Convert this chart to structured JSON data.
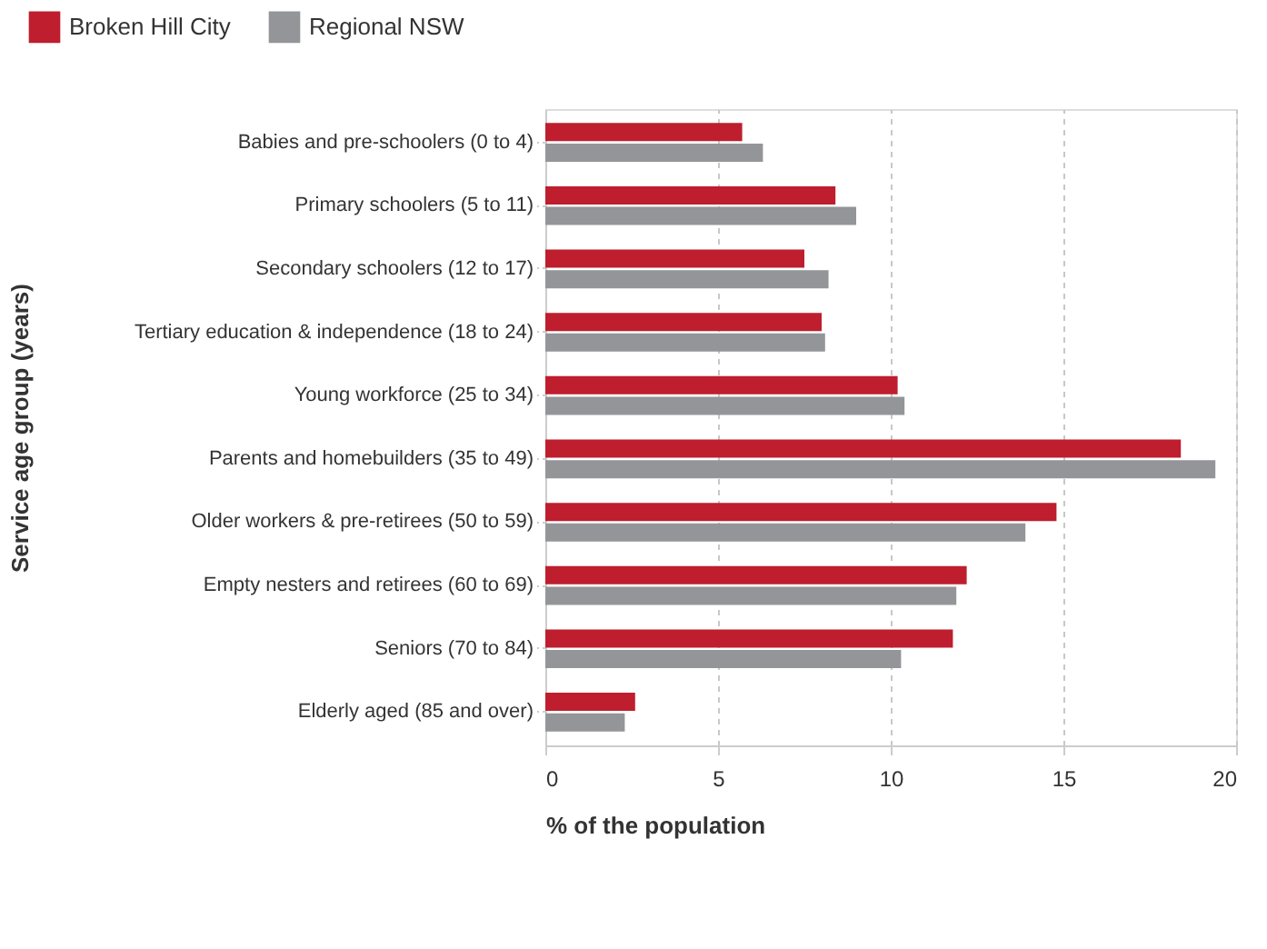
{
  "chart_data": {
    "type": "bar",
    "orientation": "horizontal",
    "xlabel": "% of the population",
    "ylabel": "Service age group (years)",
    "categories": [
      "Babies and pre-schoolers (0 to 4)",
      "Primary schoolers (5 to 11)",
      "Secondary schoolers (12 to 17)",
      "Tertiary education & independence (18 to 24)",
      "Young workforce (25 to 34)",
      "Parents and homebuilders (35 to 49)",
      "Older workers & pre-retirees (50 to 59)",
      "Empty nesters and retirees (60 to 69)",
      "Seniors (70 to 84)",
      "Elderly aged (85 and over)"
    ],
    "series": [
      {
        "name": "Broken Hill City",
        "color": "#be1e2d",
        "values": [
          5.7,
          8.4,
          7.5,
          8.0,
          10.2,
          18.4,
          14.8,
          12.2,
          11.8,
          2.6
        ]
      },
      {
        "name": "Regional NSW",
        "color": "#939598",
        "values": [
          6.3,
          9.0,
          8.2,
          8.1,
          10.4,
          19.4,
          13.9,
          11.9,
          10.3,
          2.3
        ]
      }
    ],
    "xlim": [
      0,
      20
    ],
    "xticks": [
      0,
      5,
      10,
      15,
      20
    ],
    "grid": "x",
    "legend": "top left"
  }
}
